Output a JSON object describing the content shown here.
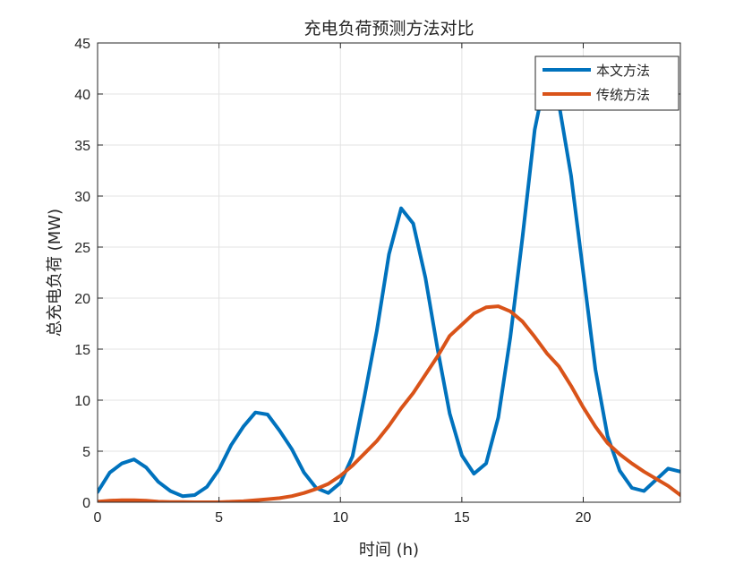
{
  "chart_data": {
    "type": "line",
    "title": "充电负荷预测方法对比",
    "xlabel": "时间 (h)",
    "ylabel": "总充电负荷 (MW)",
    "xlim": [
      0,
      24
    ],
    "ylim": [
      0,
      45
    ],
    "xticks": [
      0,
      5,
      10,
      15,
      20
    ],
    "yticks": [
      0,
      5,
      10,
      15,
      20,
      25,
      30,
      35,
      40,
      45
    ],
    "grid": true,
    "legend_position": "top-right",
    "x": [
      0,
      0.5,
      1,
      1.5,
      2,
      2.5,
      3,
      3.5,
      4,
      4.5,
      5,
      5.5,
      6,
      6.5,
      7,
      7.5,
      8,
      8.5,
      9,
      9.5,
      10,
      10.5,
      11,
      11.5,
      12,
      12.5,
      13,
      13.5,
      14,
      14.5,
      15,
      15.5,
      16,
      16.5,
      17,
      17.5,
      18,
      18.5,
      19,
      19.5,
      20,
      20.5,
      21,
      21.5,
      22,
      22.5,
      23,
      23.5,
      24
    ],
    "series": [
      {
        "name": "本文方法",
        "color": "#0072BD",
        "values": [
          1.0,
          2.9,
          3.8,
          4.2,
          3.4,
          2.0,
          1.1,
          0.6,
          0.7,
          1.5,
          3.2,
          5.6,
          7.4,
          8.8,
          8.6,
          7.0,
          5.2,
          2.9,
          1.4,
          0.9,
          1.9,
          4.5,
          10.5,
          16.8,
          24.3,
          28.8,
          27.3,
          22.0,
          15.0,
          8.7,
          4.6,
          2.8,
          3.8,
          8.3,
          16.2,
          26.0,
          36.5,
          42.3,
          39.0,
          32.0,
          22.5,
          13.0,
          6.5,
          3.1,
          1.4,
          1.1,
          2.2,
          3.3,
          3.0
        ]
      },
      {
        "name": "传统方法",
        "color": "#D95319",
        "values": [
          0.05,
          0.15,
          0.2,
          0.2,
          0.15,
          0.05,
          0.02,
          0.02,
          0.0,
          0.0,
          0.0,
          0.05,
          0.1,
          0.2,
          0.3,
          0.4,
          0.6,
          0.9,
          1.3,
          1.8,
          2.6,
          3.6,
          4.8,
          6.0,
          7.5,
          9.2,
          10.7,
          12.5,
          14.3,
          16.3,
          17.4,
          18.5,
          19.1,
          19.2,
          18.7,
          17.7,
          16.2,
          14.6,
          13.3,
          11.4,
          9.3,
          7.4,
          5.8,
          4.7,
          3.8,
          3.0,
          2.3,
          1.6,
          0.7
        ]
      }
    ]
  }
}
